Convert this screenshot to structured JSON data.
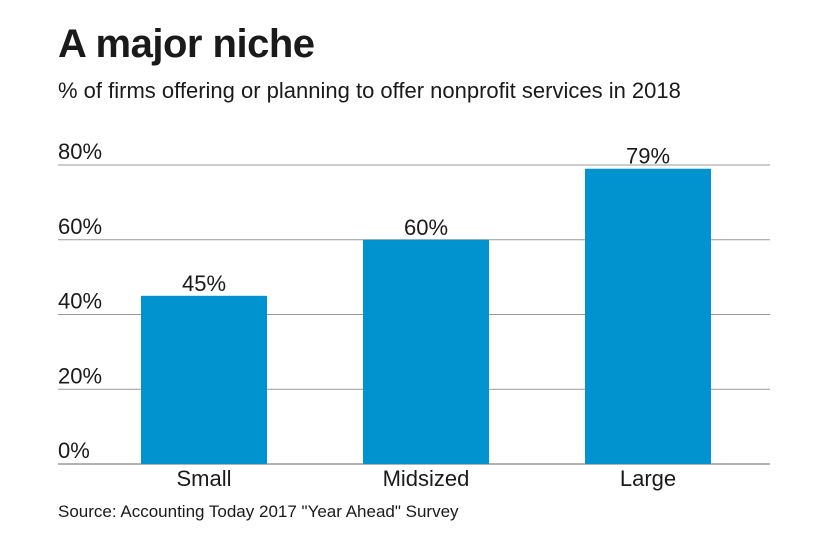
{
  "chart_data": {
    "type": "bar",
    "title": "A major niche",
    "subtitle": "% of firms offering or planning to offer nonprofit services in 2018",
    "categories": [
      "Small",
      "Midsized",
      "Large"
    ],
    "values": [
      45,
      60,
      79
    ],
    "value_labels": [
      "45%",
      "60%",
      "79%"
    ],
    "ylim": [
      0,
      80
    ],
    "yticks": [
      0,
      20,
      40,
      60,
      80
    ],
    "ytick_labels": [
      "0%",
      "20%",
      "40%",
      "60%",
      "80%"
    ],
    "xlabel": "",
    "ylabel": "",
    "grid": true,
    "bar_color": "#0093d0",
    "gridline_color": "#999999",
    "source": "Source: Accounting Today 2017 \"Year Ahead\" Survey"
  }
}
